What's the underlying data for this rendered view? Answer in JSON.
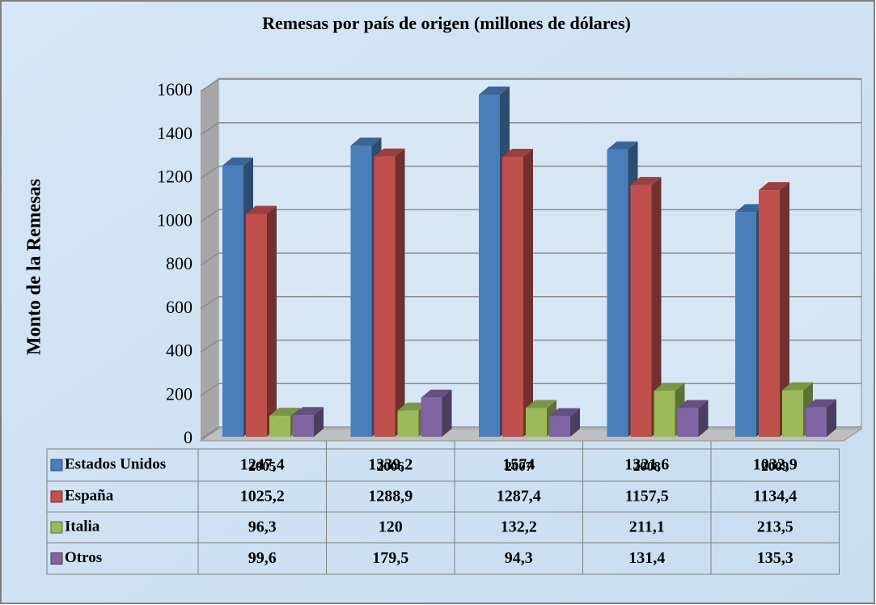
{
  "chart_data": {
    "type": "bar3d",
    "title": "Remesas por país de origen (millones de dólares)",
    "y_label": "Monto de la Remesas",
    "categories": [
      "2005",
      "2006",
      "2007",
      "2008",
      "2009"
    ],
    "series": [
      {
        "name": "Estados Unidos",
        "color": "#4a7ebb",
        "values": [
          1247.4,
          1339.2,
          1574,
          1321.6,
          1032.9
        ],
        "value_labels": [
          "1247,4",
          "1339,2",
          "1574",
          "1321,6",
          "1032,9"
        ]
      },
      {
        "name": "España",
        "color": "#c0504d",
        "values": [
          1025.2,
          1288.9,
          1287.4,
          1157.5,
          1134.4
        ],
        "value_labels": [
          "1025,2",
          "1288,9",
          "1287,4",
          "1157,5",
          "1134,4"
        ]
      },
      {
        "name": "Italia",
        "color": "#9bbb59",
        "values": [
          96.3,
          120,
          132.2,
          211.1,
          213.5
        ],
        "value_labels": [
          "96,3",
          "120",
          "132,2",
          "211,1",
          "213,5"
        ]
      },
      {
        "name": "Otros",
        "color": "#8064a2",
        "values": [
          99.6,
          179.5,
          94.3,
          131.4,
          135.3
        ],
        "value_labels": [
          "99,6",
          "179,5",
          "94,3",
          "131,4",
          "135,3"
        ]
      }
    ],
    "ylim": [
      0,
      1600
    ],
    "yticks": [
      0,
      200,
      400,
      600,
      800,
      1000,
      1200,
      1400,
      1600
    ],
    "grid": true
  }
}
